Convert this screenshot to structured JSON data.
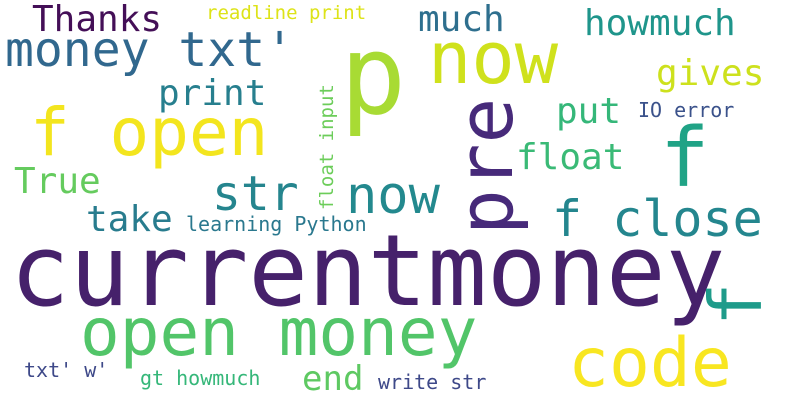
{
  "words": [
    {
      "text": "currentmoney",
      "color": "#46216b"
    },
    {
      "text": "open money",
      "color": "#52c569"
    },
    {
      "text": "f open",
      "color": "#f3e51e"
    },
    {
      "text": "p",
      "color": "#a8db34"
    },
    {
      "text": "now",
      "color": "#cfe11c"
    },
    {
      "text": "code",
      "color": "#f8e621"
    },
    {
      "text": "pre",
      "color": "#472a7a"
    },
    {
      "text": "money txt'",
      "color": "#31688e"
    },
    {
      "text": "f close",
      "color": "#24868e"
    },
    {
      "text": "now",
      "color": "#23898e"
    },
    {
      "text": "str",
      "color": "#25858e"
    },
    {
      "text": "f",
      "color": "#20a386"
    },
    {
      "text": "f",
      "color": "#1e9b8a"
    },
    {
      "text": "Thanks",
      "color": "#440f57"
    },
    {
      "text": "much",
      "color": "#2e6f8e"
    },
    {
      "text": "howmuch",
      "color": "#1f958b"
    },
    {
      "text": "gives",
      "color": "#cde11d"
    },
    {
      "text": "print",
      "color": "#277f8e"
    },
    {
      "text": "put",
      "color": "#35b779"
    },
    {
      "text": "float",
      "color": "#3aba76"
    },
    {
      "text": "True",
      "color": "#65cb5e"
    },
    {
      "text": "take",
      "color": "#287c8e"
    },
    {
      "text": "end",
      "color": "#5ec962"
    },
    {
      "text": "readline print",
      "color": "#dde318"
    },
    {
      "text": "float input",
      "color": "#6ccd5a"
    },
    {
      "text": "learning Python",
      "color": "#2a788e"
    },
    {
      "text": "IO error",
      "color": "#3b528b"
    },
    {
      "text": "txt' w'",
      "color": "#3e4989"
    },
    {
      "text": "gt howmuch",
      "color": "#35b779"
    },
    {
      "text": "write str",
      "color": "#3e4989"
    }
  ]
}
